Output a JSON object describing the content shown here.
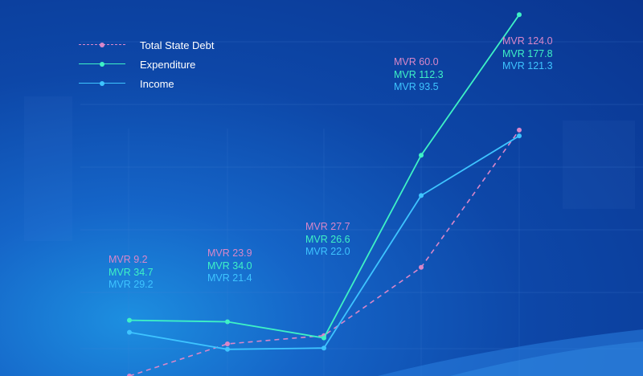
{
  "chart_data": {
    "type": "line",
    "title": "",
    "xlabel": "",
    "ylabel": "",
    "categories": [
      "",
      "",
      "",
      "",
      ""
    ],
    "ylim": [
      0,
      180
    ],
    "grid": true,
    "legend_position": "top-left",
    "series": [
      {
        "name": "Total State Debt",
        "key": "debt",
        "color": "#d987c9",
        "dashed": true,
        "values": [
          9.2,
          23.9,
          27.7,
          60.0,
          124.0
        ],
        "labels": [
          "MVR 9.2",
          "MVR 23.9",
          "MVR 27.7",
          "MVR 60.0",
          "MVR 124.0"
        ]
      },
      {
        "name": "Expenditure",
        "key": "exp",
        "color": "#3ef2c6",
        "dashed": false,
        "values": [
          34.7,
          34.0,
          26.6,
          112.3,
          177.8
        ],
        "labels": [
          "MVR 34.7",
          "MVR 34.0",
          "MVR 26.6",
          "MVR 112.3",
          "MVR 177.8"
        ]
      },
      {
        "name": "Income",
        "key": "inc",
        "color": "#3ec4ff",
        "dashed": false,
        "values": [
          29.2,
          21.4,
          22.0,
          93.5,
          121.3
        ],
        "labels": [
          "MVR 29.2",
          "MVR 21.4",
          "MVR 22.0",
          "MVR 93.5",
          "MVR 121.3"
        ]
      }
    ]
  }
}
